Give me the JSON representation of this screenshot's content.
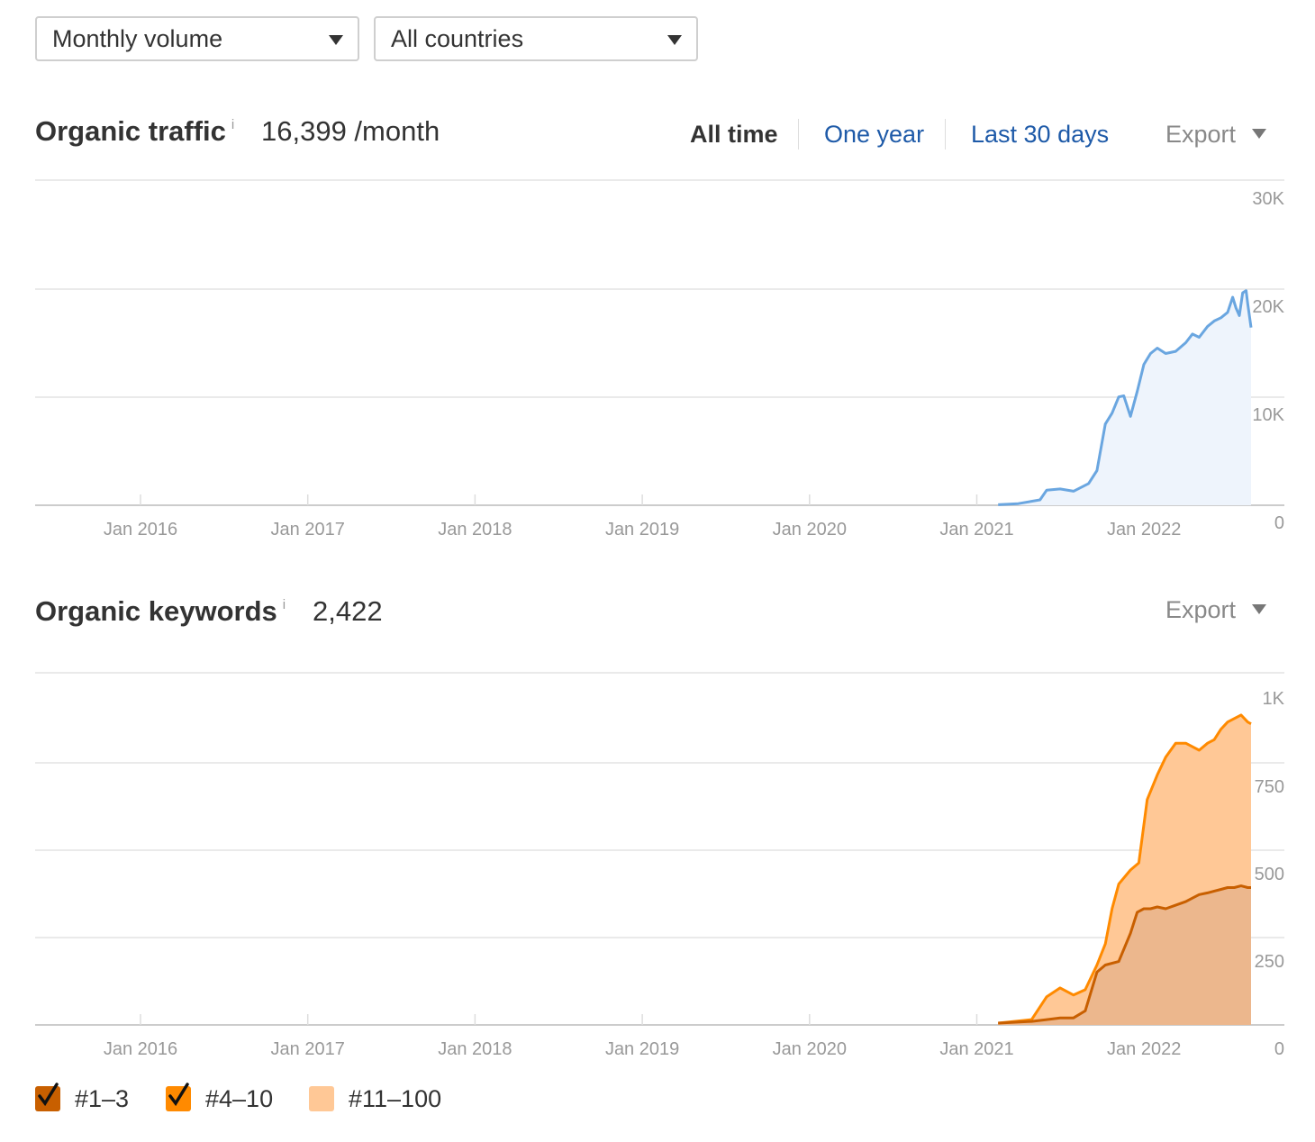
{
  "filters": {
    "volume": "Monthly volume",
    "country": "All countries"
  },
  "traffic": {
    "title": "Organic traffic",
    "info": "i",
    "value": "16,399 /month",
    "ranges": [
      "All time",
      "One year",
      "Last 30 days"
    ],
    "active_range": "All time",
    "export_label": "Export"
  },
  "keywords": {
    "title": "Organic keywords",
    "info": "i",
    "value": "2,422",
    "export_label": "Export"
  },
  "legend": [
    {
      "label": "#1–3",
      "color": "#c85f00",
      "checked": true
    },
    {
      "label": "#4–10",
      "color": "#ff8a00",
      "checked": true
    },
    {
      "label": "#11–100",
      "color": "#ffc896",
      "checked": false
    }
  ],
  "chart_data": [
    {
      "type": "area",
      "x_ticks": [
        "Jan 2016",
        "Jan 2017",
        "Jan 2018",
        "Jan 2019",
        "Jan 2020",
        "Jan 2021",
        "Jan 2022"
      ],
      "y_ticks": [
        "0",
        "10K",
        "20K",
        "30K"
      ],
      "ylim": [
        0,
        30000
      ],
      "xlim": [
        2015.37,
        2022.86
      ],
      "grid": true,
      "color": "#6aa6e0",
      "series": [
        {
          "x": [
            2021.13,
            2021.25,
            2021.38,
            2021.42,
            2021.5,
            2021.58,
            2021.67,
            2021.72,
            2021.77,
            2021.81,
            2021.85,
            2021.88,
            2021.92,
            2021.96,
            2022.0,
            2022.04,
            2022.08,
            2022.13,
            2022.19,
            2022.25,
            2022.29,
            2022.33,
            2022.38,
            2022.42,
            2022.46,
            2022.5,
            2022.53,
            2022.55,
            2022.57,
            2022.59,
            2022.61,
            2022.62,
            2022.64
          ],
          "values": [
            50,
            150,
            500,
            1400,
            1500,
            1300,
            2000,
            3200,
            7500,
            8500,
            10000,
            10100,
            8200,
            10500,
            13000,
            14000,
            14500,
            14000,
            14200,
            15000,
            15800,
            15500,
            16500,
            17000,
            17300,
            17800,
            19200,
            18200,
            17500,
            19600,
            19800,
            18600,
            16399
          ]
        }
      ]
    },
    {
      "type": "area",
      "x_ticks": [
        "Jan 2016",
        "Jan 2017",
        "Jan 2018",
        "Jan 2019",
        "Jan 2020",
        "Jan 2021",
        "Jan 2022"
      ],
      "y_ticks": [
        "0",
        "250",
        "500",
        "750",
        "1K"
      ],
      "ylim": [
        0,
        1000
      ],
      "xlim": [
        2015.37,
        2022.86
      ],
      "grid": true,
      "series": [
        {
          "name": "#4–10",
          "color": "#ff8a00",
          "x": [
            2021.13,
            2021.33,
            2021.42,
            2021.5,
            2021.58,
            2021.65,
            2021.72,
            2021.77,
            2021.81,
            2021.85,
            2021.92,
            2021.97,
            2022.02,
            2022.08,
            2022.13,
            2022.19,
            2022.25,
            2022.29,
            2022.33,
            2022.38,
            2022.42,
            2022.46,
            2022.5,
            2022.54,
            2022.58,
            2022.62,
            2022.64
          ],
          "values": [
            5,
            15,
            80,
            105,
            85,
            100,
            170,
            230,
            330,
            400,
            440,
            460,
            640,
            710,
            760,
            800,
            800,
            790,
            780,
            800,
            810,
            840,
            860,
            870,
            880,
            860,
            855
          ]
        },
        {
          "name": "#1–3",
          "color": "#c85f00",
          "x": [
            2021.13,
            2021.33,
            2021.42,
            2021.5,
            2021.58,
            2021.65,
            2021.72,
            2021.77,
            2021.85,
            2021.92,
            2021.96,
            2022.0,
            2022.04,
            2022.08,
            2022.13,
            2022.19,
            2022.25,
            2022.29,
            2022.33,
            2022.38,
            2022.42,
            2022.46,
            2022.5,
            2022.54,
            2022.58,
            2022.62,
            2022.64
          ],
          "values": [
            5,
            10,
            15,
            20,
            20,
            40,
            150,
            170,
            180,
            260,
            320,
            330,
            330,
            335,
            330,
            340,
            350,
            360,
            370,
            375,
            380,
            385,
            390,
            390,
            395,
            390,
            390
          ]
        }
      ]
    }
  ]
}
